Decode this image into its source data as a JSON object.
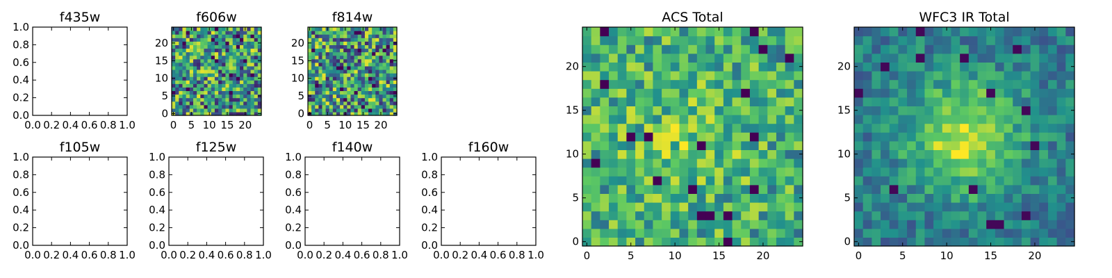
{
  "colormap": [
    "#440154",
    "#3b528b",
    "#21918c",
    "#5ec962",
    "#fde725"
  ],
  "chart_data": [
    {
      "type": "empty",
      "title": "f435w",
      "xlim": [
        0,
        1
      ],
      "ylim": [
        0,
        1
      ],
      "xticks": [
        "0.0",
        "0.2",
        "0.4",
        "0.6",
        "0.8",
        "1.0"
      ],
      "yticks": [
        "0.0",
        "0.2",
        "0.4",
        "0.6",
        "0.8",
        "1.0"
      ]
    },
    {
      "type": "heatmap",
      "title": "f606w",
      "shape": [
        25,
        25
      ],
      "xlim": [
        -0.5,
        24.5
      ],
      "ylim": [
        -0.5,
        24.5
      ],
      "xticks": [
        "0",
        "5",
        "10",
        "15",
        "20"
      ],
      "yticks": [
        "0",
        "5",
        "10",
        "15",
        "20"
      ]
    },
    {
      "type": "heatmap",
      "title": "f814w",
      "shape": [
        25,
        25
      ],
      "xlim": [
        -0.5,
        24.5
      ],
      "ylim": [
        -0.5,
        24.5
      ],
      "xticks": [
        "0",
        "5",
        "10",
        "15",
        "20"
      ],
      "yticks": [
        "0",
        "5",
        "10",
        "15",
        "20"
      ]
    },
    {
      "type": "empty",
      "title": "f105w",
      "xlim": [
        0,
        1
      ],
      "ylim": [
        0,
        1
      ],
      "xticks": [
        "0.0",
        "0.2",
        "0.4",
        "0.6",
        "0.8",
        "1.0"
      ],
      "yticks": [
        "0.0",
        "0.2",
        "0.4",
        "0.6",
        "0.8",
        "1.0"
      ]
    },
    {
      "type": "empty",
      "title": "f125w",
      "xlim": [
        0,
        1
      ],
      "ylim": [
        0,
        1
      ],
      "xticks": [
        "0.0",
        "0.2",
        "0.4",
        "0.6",
        "0.8",
        "1.0"
      ],
      "yticks": [
        "0.0",
        "0.2",
        "0.4",
        "0.6",
        "0.8",
        "1.0"
      ]
    },
    {
      "type": "empty",
      "title": "f140w",
      "xlim": [
        0,
        1
      ],
      "ylim": [
        0,
        1
      ],
      "xticks": [
        "0.0",
        "0.2",
        "0.4",
        "0.6",
        "0.8",
        "1.0"
      ],
      "yticks": [
        "0.0",
        "0.2",
        "0.4",
        "0.6",
        "0.8",
        "1.0"
      ]
    },
    {
      "type": "empty",
      "title": "f160w",
      "xlim": [
        0,
        1
      ],
      "ylim": [
        0,
        1
      ],
      "xticks": [
        "0.0",
        "0.2",
        "0.4",
        "0.6",
        "0.8",
        "1.0"
      ],
      "yticks": [
        "0.0",
        "0.2",
        "0.4",
        "0.6",
        "0.8",
        "1.0"
      ]
    },
    {
      "type": "heatmap",
      "title": "ACS Total",
      "shape": [
        25,
        25
      ],
      "xlim": [
        -0.5,
        24.5
      ],
      "ylim": [
        -0.5,
        24.5
      ],
      "xticks": [
        "0",
        "5",
        "10",
        "15",
        "20"
      ],
      "yticks": [
        "0",
        "5",
        "10",
        "15",
        "20"
      ]
    },
    {
      "type": "heatmap",
      "title": "WFC3 IR Total",
      "shape": [
        25,
        25
      ],
      "xlim": [
        -0.5,
        24.5
      ],
      "ylim": [
        -0.5,
        24.5
      ],
      "xticks": [
        "0",
        "5",
        "10",
        "15",
        "20"
      ],
      "yticks": [
        "0",
        "5",
        "10",
        "15",
        "20"
      ]
    }
  ]
}
